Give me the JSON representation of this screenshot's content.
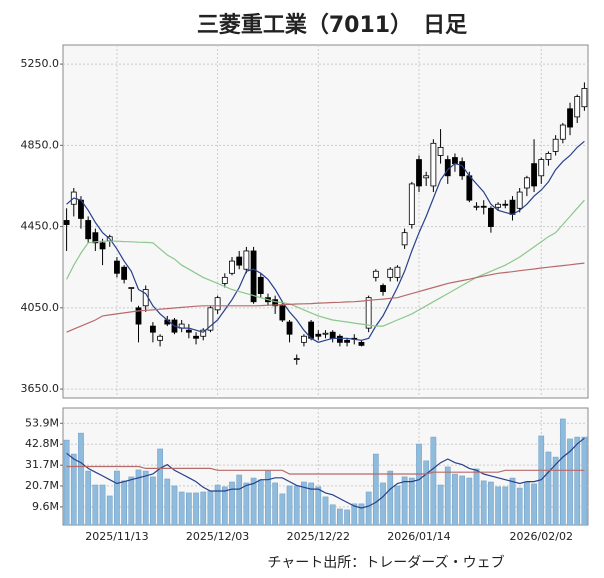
{
  "chart_data": [
    {
      "type": "candlestick",
      "title": "三菱重工業（7011）　日足",
      "open": [
        4480,
        4560,
        4580,
        4480,
        4420,
        4370,
        4380,
        4280,
        4250,
        4150,
        4050,
        4060,
        3960,
        3890,
        3990,
        3990,
        3950,
        3940,
        3910,
        3910,
        3940,
        4040,
        4170,
        4220,
        4300,
        4240,
        4330,
        4200,
        4100,
        4090,
        4060,
        3980,
        3800,
        3880,
        3980,
        3920,
        3920,
        3930,
        3910,
        3890,
        3900,
        3880,
        3950,
        4200,
        4160,
        4200,
        4200,
        4360,
        4460,
        4780,
        4690,
        4650,
        4800,
        4780,
        4790,
        4770,
        4700,
        4550,
        4550,
        4540,
        4545,
        4560,
        4580,
        4540,
        4640,
        4760,
        4700,
        4780,
        4820,
        4880,
        5030,
        4990,
        5040
      ],
      "high": [
        4540,
        4640,
        4600,
        4500,
        4440,
        4390,
        4410,
        4300,
        4260,
        4150,
        4060,
        4160,
        3980,
        3920,
        4010,
        4000,
        3990,
        3970,
        3930,
        3950,
        4060,
        4110,
        4220,
        4300,
        4330,
        4350,
        4350,
        4220,
        4120,
        4110,
        4080,
        3990,
        3820,
        3920,
        3990,
        3940,
        3940,
        3940,
        3920,
        3900,
        3920,
        3890,
        4110,
        4240,
        4170,
        4250,
        4260,
        4440,
        4670,
        4800,
        4720,
        4880,
        4930,
        4800,
        4810,
        4790,
        4720,
        4570,
        4580,
        4550,
        4570,
        4580,
        4600,
        4640,
        4700,
        4880,
        4790,
        4820,
        4900,
        4960,
        5060,
        5100,
        5160
      ],
      "low": [
        4330,
        4500,
        4440,
        4370,
        4330,
        4260,
        4350,
        4200,
        4170,
        4080,
        3880,
        4030,
        3880,
        3860,
        3960,
        3920,
        3930,
        3900,
        3870,
        3890,
        3930,
        4020,
        4150,
        4210,
        4240,
        4220,
        4070,
        4100,
        4060,
        4020,
        3980,
        3880,
        3770,
        3860,
        3890,
        3890,
        3900,
        3880,
        3860,
        3860,
        3870,
        3860,
        3930,
        4180,
        4110,
        4180,
        4180,
        4340,
        4440,
        4620,
        4650,
        4620,
        4760,
        4660,
        4720,
        4680,
        4570,
        4530,
        4510,
        4420,
        4530,
        4540,
        4480,
        4520,
        4600,
        4620,
        4660,
        4750,
        4800,
        4860,
        4900,
        4960,
        5020
      ],
      "close": [
        4460,
        4620,
        4490,
        4390,
        4370,
        4340,
        4400,
        4220,
        4190,
        4150,
        3970,
        4140,
        3930,
        3910,
        3970,
        3930,
        3970,
        3930,
        3900,
        3940,
        4050,
        4100,
        4200,
        4280,
        4260,
        4330,
        4080,
        4120,
        4080,
        4060,
        3990,
        3920,
        3800,
        3910,
        3900,
        3910,
        3925,
        3900,
        3880,
        3880,
        3895,
        3865,
        4100,
        4230,
        4130,
        4240,
        4250,
        4420,
        4660,
        4650,
        4700,
        4860,
        4840,
        4700,
        4760,
        4700,
        4580,
        4550,
        4545,
        4450,
        4560,
        4555,
        4510,
        4620,
        4690,
        4650,
        4780,
        4810,
        4880,
        4950,
        4940,
        5090,
        5130
      ],
      "lines": [
        {
          "color": "#27408b",
          "values": [
            4560,
            4590,
            4580,
            4530,
            4470,
            4420,
            4390,
            4340,
            4280,
            4230,
            4140,
            4120,
            4060,
            4020,
            3990,
            3960,
            3950,
            3950,
            3940,
            3930,
            3960,
            3990,
            4040,
            4090,
            4150,
            4230,
            4240,
            4220,
            4190,
            4140,
            4080,
            4030,
            3990,
            3940,
            3900,
            3880,
            3890,
            3900,
            3900,
            3900,
            3895,
            3890,
            3900,
            3960,
            4010,
            4080,
            4150,
            4230,
            4330,
            4420,
            4500,
            4590,
            4680,
            4730,
            4760,
            4750,
            4700,
            4660,
            4620,
            4560,
            4530,
            4520,
            4510,
            4530,
            4560,
            4600,
            4630,
            4670,
            4730,
            4770,
            4800,
            4840,
            4870
          ]
        },
        {
          "color": "#8cc78c",
          "values": [
            4190,
            4260,
            4320,
            4370,
            4375,
            4378,
            4378,
            4378,
            4376,
            4375,
            4373,
            4372,
            4370,
            4340,
            4310,
            4290,
            4260,
            4240,
            4220,
            4200,
            4185,
            4170,
            4155,
            4140,
            4130,
            4120,
            4110,
            4100,
            4090,
            4080,
            4075,
            4070,
            4055,
            4040,
            4025,
            4010,
            4000,
            3990,
            3985,
            3980,
            3975,
            3970,
            3965,
            3960,
            3960,
            3975,
            3990,
            4005,
            4020,
            4040,
            4060,
            4080,
            4100,
            4120,
            4140,
            4160,
            4180,
            4200,
            4215,
            4230,
            4245,
            4260,
            4280,
            4300,
            4325,
            4350,
            4375,
            4400,
            4420,
            4460,
            4500,
            4540,
            4580
          ]
        },
        {
          "color": "#b86a6a",
          "values": [
            3930,
            3945,
            3960,
            3975,
            3990,
            4010,
            4015,
            4020,
            4025,
            4030,
            4035,
            4038,
            4040,
            4043,
            4046,
            4049,
            4052,
            4055,
            4058,
            4060,
            4060,
            4060,
            4060,
            4060,
            4060,
            4060,
            4060,
            4061,
            4063,
            4064,
            4066,
            4067,
            4069,
            4070,
            4071,
            4073,
            4074,
            4076,
            4077,
            4079,
            4080,
            4083,
            4087,
            4090,
            4093,
            4097,
            4100,
            4110,
            4120,
            4130,
            4140,
            4150,
            4160,
            4170,
            4177,
            4184,
            4191,
            4199,
            4206,
            4213,
            4220,
            4224,
            4228,
            4233,
            4237,
            4241,
            4246,
            4250,
            4254,
            4258,
            4262,
            4266,
            4270
          ]
        }
      ],
      "ylim": [
        3606,
        5344
      ],
      "yticks": [
        {
          "value": 3650,
          "label": "3650.0"
        },
        {
          "value": 4050,
          "label": "4050.0"
        },
        {
          "value": 4450,
          "label": "4450.0"
        },
        {
          "value": 4850,
          "label": "4850.0"
        },
        {
          "value": 5250,
          "label": "5250.0"
        }
      ],
      "grid": true,
      "up_color": "#ffffff",
      "down_color": "#000000"
    },
    {
      "type": "bar",
      "categories": [
        null,
        null,
        null,
        null,
        null,
        null,
        null,
        "2025/11/13",
        null,
        null,
        null,
        null,
        null,
        null,
        null,
        null,
        null,
        null,
        null,
        null,
        null,
        "2025/12/03",
        null,
        null,
        null,
        null,
        null,
        null,
        null,
        null,
        null,
        null,
        null,
        null,
        null,
        "2025/12/22",
        null,
        null,
        null,
        null,
        null,
        null,
        null,
        null,
        null,
        null,
        null,
        null,
        null,
        "2026/01/14",
        null,
        null,
        null,
        null,
        null,
        null,
        null,
        null,
        null,
        null,
        null,
        null,
        null,
        null,
        null,
        null,
        "2026/02/02",
        null,
        null,
        null,
        null,
        null,
        null
      ],
      "values": [
        45,
        37.6,
        48.7,
        28.6,
        21.2,
        21.2,
        15.4,
        28.6,
        23.4,
        25.5,
        29.2,
        28.6,
        25.5,
        40.3,
        24.4,
        20.7,
        17.5,
        17,
        17,
        17.5,
        18,
        21.2,
        20.2,
        22.8,
        26.5,
        22.3,
        24.9,
        23.9,
        28.6,
        22.3,
        16.5,
        20.7,
        20.7,
        22.8,
        22.3,
        20.2,
        14.9,
        10.7,
        8.5,
        8,
        11.2,
        11.2,
        17.5,
        37.6,
        22.3,
        28.6,
        20.7,
        25.5,
        24.9,
        42.9,
        34,
        46.6,
        21.2,
        30.8,
        27,
        26,
        24.9,
        29.7,
        23.4,
        22.8,
        20.2,
        20.2,
        24.9,
        19.6,
        22.8,
        21.8,
        47.2,
        38.7,
        36,
        56.2,
        45.6,
        46.6,
        46.6
      ],
      "color": "#8fbbdd",
      "lines": [
        {
          "color": "#27408b",
          "values": [
            38,
            35,
            33,
            30,
            28,
            26,
            24,
            22,
            23,
            24,
            25,
            26,
            27,
            30,
            32,
            29,
            27,
            25,
            23,
            20,
            18,
            18,
            18,
            19,
            19,
            21,
            22,
            24,
            24,
            25,
            25,
            23,
            21,
            20,
            19,
            19,
            17,
            16,
            14,
            12,
            10,
            9,
            10,
            12,
            15,
            19,
            22,
            23,
            23,
            24,
            27,
            30,
            33,
            35,
            33,
            32,
            30,
            29,
            27,
            26,
            25,
            24,
            23,
            22,
            23,
            23,
            24,
            28,
            32,
            36,
            39,
            43,
            46
          ]
        },
        {
          "color": "#b86a6a",
          "values": [
            31,
            31,
            31,
            31,
            31,
            31,
            31,
            31,
            31,
            31,
            31,
            30,
            30,
            30,
            30,
            30,
            30,
            30,
            30,
            30,
            30,
            29,
            29,
            29,
            29,
            29,
            29,
            29,
            29,
            29,
            29,
            27,
            27,
            27,
            27,
            27,
            27,
            27,
            27,
            27,
            27,
            27,
            27,
            27,
            27,
            27,
            27,
            27,
            27,
            27,
            27,
            28,
            28,
            28,
            28,
            28,
            28,
            28,
            28,
            28,
            28,
            29,
            29,
            29,
            29,
            29,
            29,
            29,
            29,
            29,
            29,
            29,
            29
          ]
        }
      ],
      "ylim": [
        0,
        62
      ],
      "yticks": [
        {
          "value": 9.6,
          "label": "9.6M"
        },
        {
          "value": 20.7,
          "label": "20.7M"
        },
        {
          "value": 31.7,
          "label": "31.7M"
        },
        {
          "value": 42.8,
          "label": "42.8M"
        },
        {
          "value": 53.9,
          "label": "53.9M"
        }
      ],
      "grid": true
    }
  ],
  "source": "チャート出所：トレーダーズ・ウェブ"
}
